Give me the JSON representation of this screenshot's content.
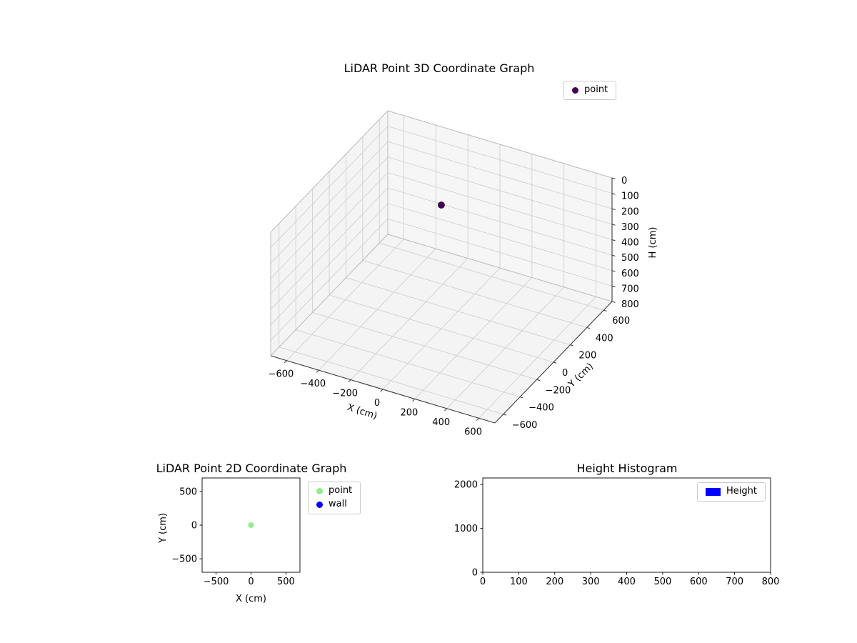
{
  "figure": {
    "background": "#ffffff"
  },
  "chart_data": [
    {
      "id": "lidar-3d",
      "type": "scatter3d",
      "title": "LiDAR Point 3D Coordinate Graph",
      "xlabel": "X (cm)",
      "ylabel": "Y (cm)",
      "zlabel": "H (cm)",
      "xlim": [
        -700,
        700
      ],
      "ylim": [
        -700,
        700
      ],
      "zlim": [
        0,
        800
      ],
      "zaxis_inverted": true,
      "xticks": [
        -600,
        -400,
        -200,
        0,
        200,
        400,
        600
      ],
      "yticks": [
        -600,
        -400,
        -200,
        0,
        200,
        400,
        600
      ],
      "zticks": [
        0,
        100,
        200,
        300,
        400,
        500,
        600,
        700,
        800
      ],
      "grid": true,
      "legend": {
        "position": "upper right",
        "entries": [
          {
            "label": "point",
            "marker": "circle",
            "color": "#440154"
          }
        ]
      },
      "series": [
        {
          "name": "point",
          "color": "#440154",
          "points": [
            {
              "x": 0,
              "y": 0,
              "h": 0
            }
          ]
        }
      ]
    },
    {
      "id": "lidar-2d",
      "type": "scatter",
      "title": "LiDAR Point 2D Coordinate Graph",
      "xlabel": "X (cm)",
      "ylabel": "Y (cm)",
      "xlim": [
        -700,
        700
      ],
      "ylim": [
        -700,
        700
      ],
      "xticks": [
        -500,
        0,
        500
      ],
      "yticks": [
        -500,
        0,
        500
      ],
      "grid": false,
      "legend": {
        "position": "outside right",
        "entries": [
          {
            "label": "point",
            "marker": "circle",
            "color": "#90ee90"
          },
          {
            "label": "wall",
            "marker": "circle",
            "color": "#0000ff"
          }
        ]
      },
      "series": [
        {
          "name": "point",
          "color": "#90ee90",
          "points": [
            {
              "x": 0,
              "y": 0
            }
          ]
        },
        {
          "name": "wall",
          "color": "#0000ff",
          "points": []
        }
      ]
    },
    {
      "id": "height-histogram",
      "type": "histogram",
      "title": "Height Histogram",
      "xlim": [
        0,
        800
      ],
      "ylim": [
        0,
        2150
      ],
      "xticks": [
        0,
        100,
        200,
        300,
        400,
        500,
        600,
        700,
        800
      ],
      "yticks": [
        0,
        1000,
        2000
      ],
      "legend": {
        "position": "upper right",
        "entries": [
          {
            "label": "Height",
            "marker": "rect",
            "color": "#0000ff"
          }
        ]
      },
      "bars": []
    }
  ]
}
